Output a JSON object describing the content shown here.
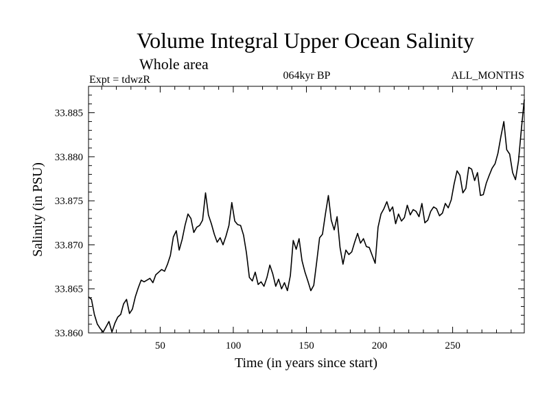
{
  "chart_data": {
    "type": "line",
    "title": "Volume Integral Upper Ocean Salinity",
    "subtitle": "Whole area",
    "left_note": "Expt = tdwzR",
    "center_note": "064kyr BP",
    "right_note": "ALL_MONTHS",
    "xlabel": "Time (in years since start)",
    "ylabel": "Salinity (in PSU)",
    "xlim": [
      1,
      299
    ],
    "ylim": [
      33.86,
      33.888
    ],
    "x_ticks": [
      50,
      100,
      150,
      200,
      250
    ],
    "x_tick_labels": [
      "50",
      "100",
      "150",
      "200",
      "250"
    ],
    "y_ticks": [
      33.86,
      33.865,
      33.87,
      33.875,
      33.88,
      33.885
    ],
    "y_tick_labels": [
      "33.860",
      "33.865",
      "33.870",
      "33.875",
      "33.880",
      "33.885"
    ],
    "grid": false,
    "series": [
      {
        "color": "#000000",
        "x": [
          1,
          3,
          5,
          7,
          9,
          11,
          13,
          15,
          17,
          19,
          21,
          23,
          25,
          27,
          29,
          31,
          33,
          35,
          37,
          39,
          41,
          43,
          45,
          47,
          49,
          51,
          53,
          55,
          57,
          59,
          61,
          63,
          65,
          67,
          69,
          71,
          73,
          75,
          77,
          79,
          81,
          83,
          85,
          87,
          89,
          91,
          93,
          95,
          97,
          99,
          101,
          103,
          105,
          107,
          109,
          111,
          113,
          115,
          117,
          119,
          121,
          123,
          125,
          127,
          129,
          131,
          133,
          135,
          137,
          139,
          141,
          143,
          145,
          147,
          149,
          151,
          153,
          155,
          157,
          159,
          161,
          163,
          165,
          167,
          169,
          171,
          173,
          175,
          177,
          179,
          181,
          183,
          185,
          187,
          189,
          191,
          193,
          195,
          197,
          199,
          201,
          203,
          205,
          207,
          209,
          211,
          213,
          215,
          217,
          219,
          221,
          223,
          225,
          227,
          229,
          231,
          233,
          235,
          237,
          239,
          241,
          243,
          245,
          247,
          249,
          251,
          253,
          255,
          257,
          259,
          261,
          263,
          265,
          267,
          269,
          271,
          273,
          275,
          277,
          279,
          281,
          283,
          285,
          287,
          289,
          291,
          293,
          295,
          297,
          299
        ],
        "values": [
          33.8641,
          33.8638,
          33.8621,
          33.861,
          33.8605,
          33.8601,
          33.8607,
          33.8613,
          33.8601,
          33.8611,
          33.8618,
          33.8621,
          33.8633,
          33.8638,
          33.8622,
          33.8627,
          33.8641,
          33.8651,
          33.866,
          33.8658,
          33.866,
          33.8662,
          33.8657,
          33.8666,
          33.8669,
          33.8672,
          33.867,
          33.8678,
          33.8688,
          33.8709,
          33.8716,
          33.8694,
          33.8706,
          33.8722,
          33.8735,
          33.873,
          33.8714,
          33.872,
          33.8722,
          33.8728,
          33.8759,
          33.8734,
          33.8724,
          33.8712,
          33.8703,
          33.8708,
          33.87,
          33.871,
          33.8722,
          33.8748,
          33.8727,
          33.8723,
          33.8722,
          33.8711,
          33.8691,
          33.8663,
          33.8659,
          33.8669,
          33.8655,
          33.8658,
          33.8653,
          33.8663,
          33.8677,
          33.8667,
          33.8653,
          33.8661,
          33.865,
          33.8657,
          33.8648,
          33.8665,
          33.8705,
          33.8695,
          33.8707,
          33.8682,
          33.8669,
          33.8659,
          33.8648,
          33.8654,
          33.868,
          33.8708,
          33.8712,
          33.8735,
          33.8756,
          33.8728,
          33.8717,
          33.8732,
          33.8697,
          33.8678,
          33.8694,
          33.8689,
          33.8692,
          33.8703,
          33.8713,
          33.8702,
          33.8707,
          33.8698,
          33.8697,
          33.8688,
          33.8679,
          33.872,
          33.8735,
          33.8741,
          33.8749,
          33.8738,
          33.8743,
          33.8724,
          33.8735,
          33.8727,
          33.8731,
          33.8745,
          33.8734,
          33.874,
          33.8738,
          33.8732,
          33.8747,
          33.8725,
          33.8728,
          33.8738,
          33.8743,
          33.8741,
          33.8733,
          33.8736,
          33.8747,
          33.8742,
          33.8751,
          33.8769,
          33.8784,
          33.8779,
          33.8759,
          33.8764,
          33.8788,
          33.8786,
          33.8773,
          33.8782,
          33.8756,
          33.8757,
          33.877,
          33.8779,
          33.8787,
          33.8792,
          33.8804,
          33.8823,
          33.884,
          33.8808,
          33.8803,
          33.8782,
          33.8774,
          33.8795,
          33.8831,
          33.8865
        ]
      }
    ]
  }
}
